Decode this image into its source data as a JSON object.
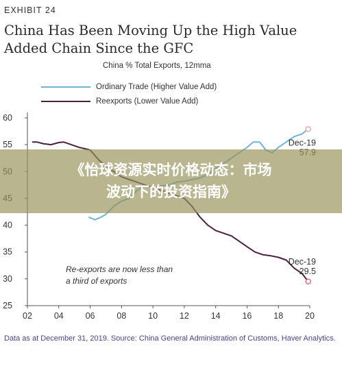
{
  "header": {
    "exhibit": "EXHIBIT 24",
    "title": "China Has Been Moving Up the High Value Added Chain Since the GFC"
  },
  "chart_data": {
    "type": "line",
    "title": "China % Total Exports, 12mma",
    "xlabel": "",
    "ylabel": "",
    "xlim": [
      2002,
      2020
    ],
    "ylim": [
      25,
      60
    ],
    "x_ticks": [
      "02",
      "04",
      "06",
      "08",
      "10",
      "12",
      "14",
      "16",
      "18",
      "20"
    ],
    "y_ticks": [
      "60",
      "55",
      "50",
      "45",
      "40",
      "35",
      "30",
      "25"
    ],
    "grid": false,
    "series": [
      {
        "name": "Ordinary Trade (Higher Value Add)",
        "color": "#6fb4d8",
        "x": [
          2005.9,
          2006.3,
          2006.7,
          2007.0,
          2007.5,
          2008.0,
          2008.5,
          2009.0,
          2009.5,
          2010.0,
          2010.5,
          2011.0,
          2011.5,
          2012.0,
          2012.5,
          2013.0,
          2013.5,
          2014.0,
          2014.5,
          2015.0,
          2015.5,
          2016.0,
          2016.4,
          2016.8,
          2017.2,
          2017.6,
          2018.0,
          2018.5,
          2019.0,
          2019.5,
          2019.9
        ],
        "values": [
          41.5,
          41.0,
          41.5,
          42.0,
          43.5,
          44.5,
          45.0,
          46.5,
          47.5,
          47.0,
          47.3,
          47.5,
          48.0,
          48.2,
          48.5,
          48.8,
          49.5,
          50.5,
          51.5,
          52.5,
          53.5,
          54.5,
          55.5,
          55.5,
          54.0,
          53.5,
          54.5,
          55.5,
          56.5,
          57.0,
          57.9
        ]
      },
      {
        "name": "Reexports (Lower Value Add)",
        "color": "#4b1f3f",
        "x": [
          2002.3,
          2002.6,
          2003.0,
          2003.5,
          2004.0,
          2004.3,
          2004.6,
          2005.0,
          2005.3,
          2005.6,
          2006.0,
          2006.3,
          2006.6,
          2007.0,
          2007.5,
          2008.0,
          2008.5,
          2009.0,
          2009.5,
          2010.0,
          2010.5,
          2011.0,
          2011.5,
          2012.0,
          2012.5,
          2013.0,
          2013.5,
          2014.0,
          2014.5,
          2015.0,
          2015.5,
          2016.0,
          2016.5,
          2017.0,
          2017.5,
          2018.0,
          2018.5,
          2019.0,
          2019.5,
          2019.9
        ],
        "values": [
          55.5,
          55.5,
          55.2,
          55.0,
          55.4,
          55.5,
          55.2,
          54.8,
          54.5,
          54.3,
          54.0,
          53.0,
          52.0,
          51.0,
          50.0,
          49.0,
          48.5,
          48.0,
          47.5,
          47.0,
          46.5,
          46.0,
          45.5,
          45.0,
          43.5,
          41.5,
          40.0,
          39.0,
          38.5,
          38.0,
          37.0,
          36.0,
          35.0,
          34.5,
          34.3,
          34.0,
          33.5,
          32.0,
          31.0,
          29.5
        ]
      }
    ],
    "annotations": [
      {
        "text": "Dec-19",
        "value": "57.9",
        "x": 2019.9,
        "y": 57.9,
        "series": 0
      },
      {
        "text": "Dec-19",
        "value": "29.5",
        "x": 2019.9,
        "y": 29.5,
        "series": 1
      },
      {
        "text": "Re-exports are now less than",
        "text2": "a third of exports"
      }
    ]
  },
  "footnote": "Data as at December 31, 2019. Source: China General Administration of Customs, Haver Analytics.",
  "overlay": {
    "line1": "《怡球资源实时价格动态：市场",
    "line2": "波动下的投资指南》"
  }
}
